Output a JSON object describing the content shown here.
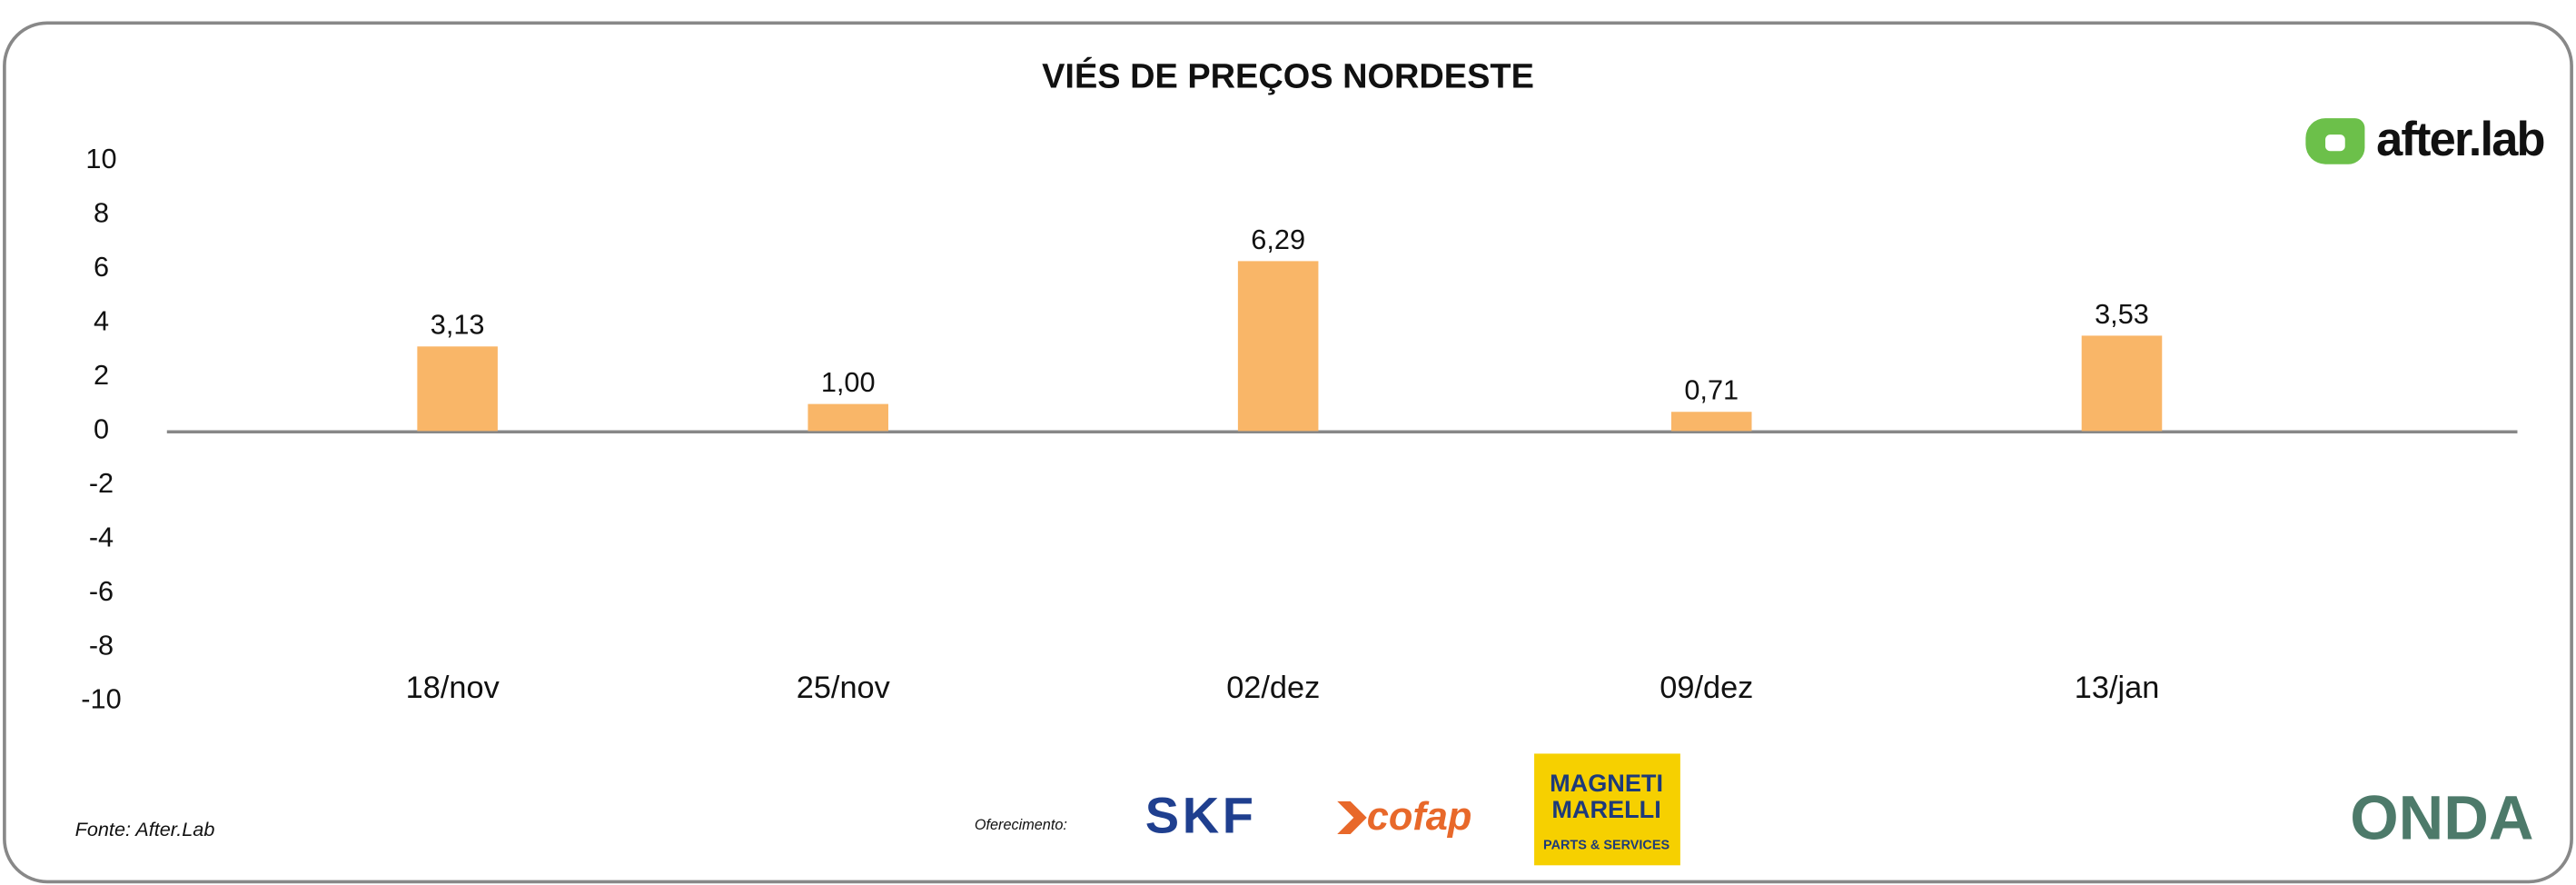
{
  "chart_data": {
    "type": "bar",
    "title": "VIÉS DE PREÇOS NORDESTE",
    "categories": [
      "18/nov",
      "25/nov",
      "02/dez",
      "09/dez",
      "13/jan"
    ],
    "values": [
      3.13,
      1.0,
      6.29,
      0.71,
      3.53
    ],
    "value_labels": [
      "3,13",
      "1,00",
      "6,29",
      "0,71",
      "3,53"
    ],
    "color": "#f9b668",
    "ylim": [
      -10,
      10
    ],
    "yticks": [
      -10,
      -8,
      -6,
      -4,
      -2,
      0,
      2,
      4,
      6,
      8,
      10
    ],
    "grid": false
  },
  "source": "Fonte: After.Lab",
  "sponsor_label": "Oferecimento:",
  "logos": {
    "brand": "after.lab",
    "skf": "SKF",
    "cofap": "cofap",
    "magneti": [
      "MAGNETI",
      "MARELLI"
    ],
    "magneti_sub": "PARTS & SERVICES",
    "onda": "ONDA"
  }
}
